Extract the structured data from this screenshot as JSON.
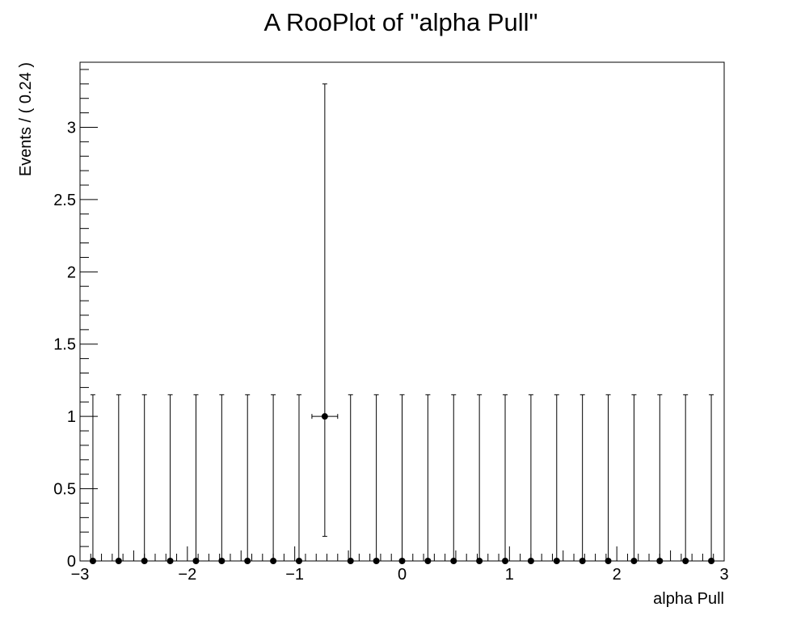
{
  "chart_data": {
    "type": "scatter",
    "title": "A RooPlot of \"alpha Pull\"",
    "xlabel": "alpha Pull",
    "ylabel": "Events / ( 0.24 )",
    "xlim": [
      -3,
      3
    ],
    "ylim": [
      0,
      3.45
    ],
    "grid": false,
    "x_ticks": [
      -3,
      -2,
      -1,
      0,
      1,
      2,
      3
    ],
    "x_tick_labels": [
      "−3",
      "−2",
      "−1",
      "0",
      "1",
      "2",
      "3"
    ],
    "y_ticks": [
      0,
      0.5,
      1,
      1.5,
      2,
      2.5,
      3
    ],
    "y_tick_labels": [
      "0",
      "0.5",
      "1",
      "1.5",
      "2",
      "2.5",
      "3"
    ],
    "bin_width": 0.24,
    "series": [
      {
        "x": [
          -2.88,
          -2.64,
          -2.4,
          -2.16,
          -1.92,
          -1.68,
          -1.44,
          -1.2,
          -0.96,
          -0.72,
          -0.48,
          -0.24,
          0.0,
          0.24,
          0.48,
          0.72,
          0.96,
          1.2,
          1.44,
          1.68,
          1.92,
          2.16,
          2.4,
          2.64,
          2.88
        ],
        "y": [
          0,
          0,
          0,
          0,
          0,
          0,
          0,
          0,
          0,
          1,
          0,
          0,
          0,
          0,
          0,
          0,
          0,
          0,
          0,
          0,
          0,
          0,
          0,
          0,
          0
        ],
        "y_err_low": [
          0,
          0,
          0,
          0,
          0,
          0,
          0,
          0,
          0,
          0.83,
          0,
          0,
          0,
          0,
          0,
          0,
          0,
          0,
          0,
          0,
          0,
          0,
          0,
          0,
          0
        ],
        "y_err_high": [
          1.15,
          1.15,
          1.15,
          1.15,
          1.15,
          1.15,
          1.15,
          1.15,
          1.15,
          2.3,
          1.15,
          1.15,
          1.15,
          1.15,
          1.15,
          1.15,
          1.15,
          1.15,
          1.15,
          1.15,
          1.15,
          1.15,
          1.15,
          1.15,
          1.15
        ],
        "x_err": [
          0,
          0,
          0,
          0,
          0,
          0,
          0,
          0,
          0,
          0.12,
          0,
          0,
          0,
          0,
          0,
          0,
          0,
          0,
          0,
          0,
          0,
          0,
          0,
          0,
          0
        ]
      }
    ]
  }
}
